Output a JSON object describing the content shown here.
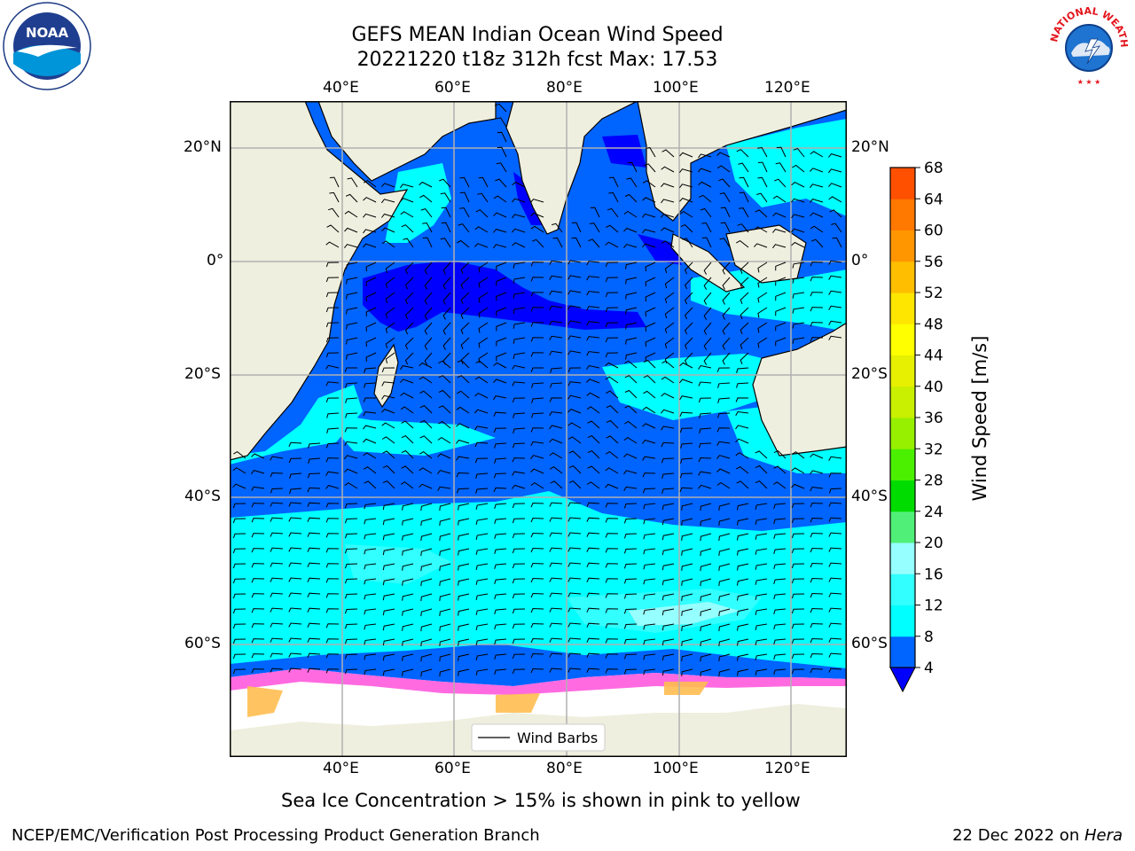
{
  "header": {
    "title_line1": "GEFS MEAN Indian Ocean Wind Speed",
    "title_line2": "20221220 t18z 312h fcst   Max: 17.53"
  },
  "logos": {
    "left": "NOAA",
    "right": "NATIONAL WEATHER SERVICE"
  },
  "map": {
    "lon_labels": [
      "40°E",
      "60°E",
      "80°E",
      "100°E",
      "120°E"
    ],
    "lat_labels": [
      "20°N",
      "0°",
      "20°S",
      "40°S",
      "60°S"
    ],
    "legend_label": "Wind Barbs",
    "colors": {
      "land": "#efefdf",
      "ice": "#ffffff",
      "grid": "#b0b0b0"
    }
  },
  "colorbar": {
    "label": "Wind Speed [m/s]",
    "ticks": [
      "4",
      "8",
      "12",
      "16",
      "20",
      "24",
      "28",
      "32",
      "36",
      "40",
      "44",
      "48",
      "52",
      "56",
      "60",
      "64",
      "68"
    ],
    "colors": [
      "#0064ff",
      "#00ffff",
      "#32ffff",
      "#96ffff",
      "#50f078",
      "#00dc00",
      "#4bf000",
      "#96f000",
      "#c8f000",
      "#e6f000",
      "#ffff00",
      "#ffe600",
      "#ffbe00",
      "#ff9600",
      "#ff7800",
      "#ff5000",
      "#ff2800",
      "#ff0000"
    ],
    "under_color": "#0000ff"
  },
  "bottom_note": "Sea Ice Concentration > 15% is shown in pink to yellow",
  "footer": {
    "left": "NCEP/EMC/Verification Post Processing Product Generation Branch",
    "right_prefix": "22 Dec 2022 on ",
    "right_machine": "Hera"
  }
}
